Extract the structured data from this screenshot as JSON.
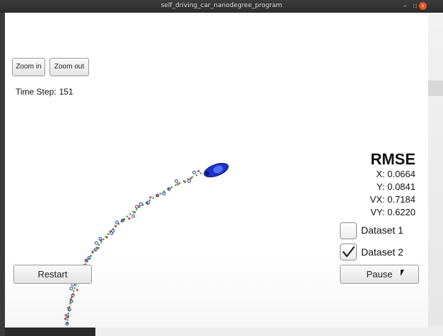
{
  "window": {
    "title": "self_driving_car_nanodegree_program",
    "minimize_glyph": "–",
    "maximize_glyph": "□",
    "close_glyph": "×"
  },
  "toolbar": {
    "zoom_in_label": "Zoom in",
    "zoom_out_label": "Zoom out"
  },
  "status": {
    "time_step_label": "Time Step:",
    "time_step_value": "151"
  },
  "rmse": {
    "title": "RMSE",
    "x": "X: 0.0664",
    "y": "Y: 0.0841",
    "vx": "VX: 0.7184",
    "vy": "VY: 0.6220"
  },
  "datasets": [
    {
      "label": "Dataset 1",
      "checked": false
    },
    {
      "label": "Dataset 2",
      "checked": true
    }
  ],
  "controls": {
    "restart_label": "Restart",
    "pause_label": "Pause"
  },
  "colors": {
    "car": "#1d33c8",
    "lidar": "#d64545",
    "radar": "#2a3aa0",
    "estimate": "#2fa84a",
    "close_button": "#e95420"
  }
}
